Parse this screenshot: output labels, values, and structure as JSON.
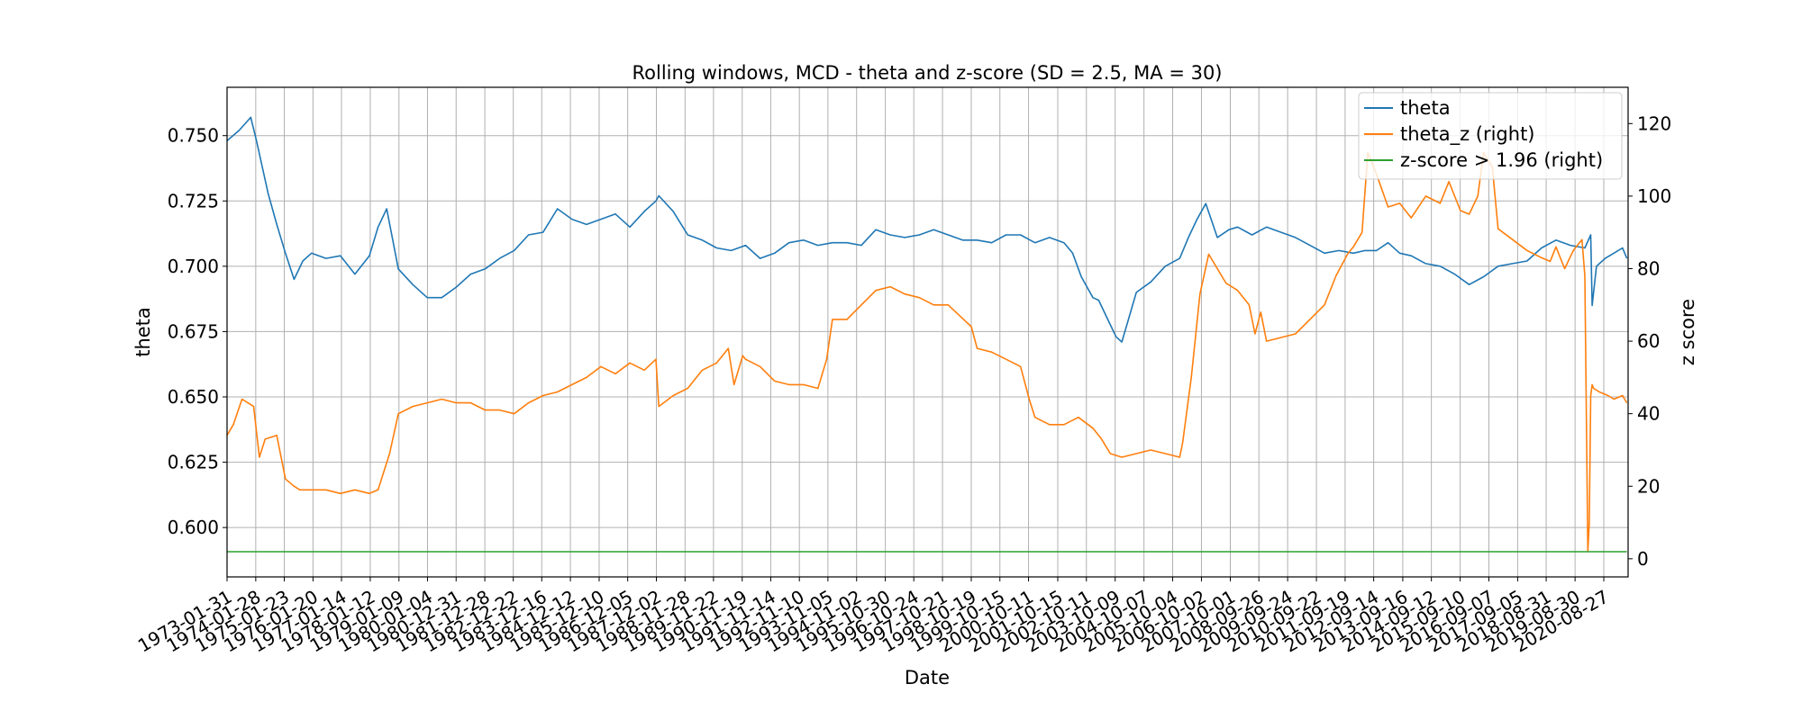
{
  "chart_data": {
    "type": "line",
    "title": "Rolling windows, MCD - theta and z-score (SD = 2.5, MA = 30)",
    "xlabel": "Date",
    "ylabel": "theta",
    "y2label": "z score",
    "grid": true,
    "legend_position": "top-right",
    "xlim": [
      "1973-01-31",
      "2021-06-30"
    ],
    "ylim": [
      0.5811,
      0.7685
    ],
    "y2lim": [
      -5,
      130
    ],
    "yticks": [
      "0.600",
      "0.625",
      "0.650",
      "0.675",
      "0.700",
      "0.725",
      "0.750"
    ],
    "y2ticks": [
      "0",
      "20",
      "40",
      "60",
      "80",
      "100",
      "120"
    ],
    "xticks": [
      "1973-01-31",
      "1974-01-28",
      "1975-01-23",
      "1976-01-20",
      "1977-01-14",
      "1978-01-12",
      "1979-01-09",
      "1980-01-04",
      "1980-12-31",
      "1981-12-28",
      "1982-12-22",
      "1983-12-16",
      "1984-12-12",
      "1985-12-10",
      "1986-12-05",
      "1987-12-02",
      "1988-11-28",
      "1989-11-22",
      "1990-11-19",
      "1991-11-14",
      "1992-11-10",
      "1993-11-05",
      "1994-11-02",
      "1995-10-30",
      "1996-10-24",
      "1997-10-21",
      "1998-10-19",
      "1999-10-15",
      "2000-10-11",
      "2001-10-15",
      "2002-10-11",
      "2003-10-09",
      "2004-10-07",
      "2005-10-04",
      "2006-10-02",
      "2007-10-01",
      "2008-09-26",
      "2009-09-24",
      "2010-09-22",
      "2011-09-19",
      "2012-09-14",
      "2013-09-16",
      "2014-09-12",
      "2015-09-10",
      "2016-09-07",
      "2017-09-05",
      "2018-08-31",
      "2019-08-30",
      "2020-08-27"
    ],
    "series": [
      {
        "name": "theta",
        "axis": "left",
        "color": "#1f77b4",
        "x": [
          1973.08,
          1973.5,
          1973.9,
          1974.1,
          1974.3,
          1974.5,
          1974.8,
          1975.1,
          1975.4,
          1975.7,
          1976.0,
          1976.5,
          1977.0,
          1977.5,
          1978.0,
          1978.3,
          1978.6,
          1979.0,
          1979.5,
          1980.0,
          1980.5,
          1981.0,
          1981.5,
          1982.0,
          1982.5,
          1983.0,
          1983.5,
          1984.0,
          1984.5,
          1985.0,
          1985.5,
          1986.0,
          1986.5,
          1987.0,
          1987.5,
          1987.9,
          1988.0,
          1988.5,
          1989.0,
          1989.5,
          1990.0,
          1990.5,
          1991.0,
          1991.5,
          1992.0,
          1992.5,
          1993.0,
          1993.5,
          1994.0,
          1994.5,
          1995.0,
          1995.5,
          1996.0,
          1996.5,
          1997.0,
          1997.5,
          1998.0,
          1998.5,
          1999.0,
          1999.5,
          2000.0,
          2000.5,
          2001.0,
          2001.5,
          2002.0,
          2002.3,
          2002.6,
          2003.0,
          2003.2,
          2003.5,
          2003.8,
          2004.0,
          2004.5,
          2005.0,
          2005.5,
          2006.0,
          2006.3,
          2006.6,
          2006.9,
          2007.3,
          2007.7,
          2008.0,
          2008.5,
          2009.0,
          2009.5,
          2010.0,
          2010.5,
          2011.0,
          2011.5,
          2012.0,
          2012.4,
          2012.8,
          2013.2,
          2013.6,
          2014.0,
          2014.5,
          2015.0,
          2015.5,
          2016.0,
          2016.5,
          2017.0,
          2017.5,
          2018.0,
          2018.5,
          2019.0,
          2019.5,
          2020.0,
          2020.2,
          2020.25,
          2020.4,
          2020.7,
          2021.0,
          2021.3,
          2021.45
        ],
        "values": [
          0.748,
          0.752,
          0.757,
          0.748,
          0.738,
          0.728,
          0.716,
          0.705,
          0.695,
          0.702,
          0.705,
          0.703,
          0.704,
          0.697,
          0.704,
          0.715,
          0.722,
          0.699,
          0.693,
          0.688,
          0.688,
          0.692,
          0.697,
          0.699,
          0.703,
          0.706,
          0.712,
          0.713,
          0.722,
          0.718,
          0.716,
          0.718,
          0.72,
          0.715,
          0.721,
          0.725,
          0.727,
          0.721,
          0.712,
          0.71,
          0.707,
          0.706,
          0.708,
          0.703,
          0.705,
          0.709,
          0.71,
          0.708,
          0.709,
          0.709,
          0.708,
          0.714,
          0.712,
          0.711,
          0.712,
          0.714,
          0.712,
          0.71,
          0.71,
          0.709,
          0.712,
          0.712,
          0.709,
          0.711,
          0.709,
          0.705,
          0.696,
          0.688,
          0.687,
          0.68,
          0.673,
          0.671,
          0.69,
          0.694,
          0.7,
          0.703,
          0.711,
          0.718,
          0.724,
          0.711,
          0.714,
          0.715,
          0.712,
          0.715,
          0.713,
          0.711,
          0.708,
          0.705,
          0.706,
          0.705,
          0.706,
          0.706,
          0.709,
          0.705,
          0.704,
          0.701,
          0.7,
          0.697,
          0.693,
          0.696,
          0.7,
          0.701,
          0.702,
          0.707,
          0.71,
          0.708,
          0.707,
          0.712,
          0.685,
          0.7,
          0.703,
          0.705,
          0.707,
          0.703
        ]
      },
      {
        "name": "theta_z (right)",
        "axis": "right",
        "color": "#ff7f0e",
        "x": [
          1973.08,
          1973.3,
          1973.6,
          1974.0,
          1974.2,
          1974.4,
          1974.8,
          1975.1,
          1975.4,
          1975.6,
          1976.0,
          1976.5,
          1977.0,
          1977.5,
          1978.0,
          1978.3,
          1978.5,
          1978.7,
          1979.0,
          1979.5,
          1980.0,
          1980.5,
          1981.0,
          1981.5,
          1982.0,
          1982.5,
          1983.0,
          1983.5,
          1984.0,
          1984.5,
          1985.0,
          1985.5,
          1986.0,
          1986.5,
          1987.0,
          1987.5,
          1987.9,
          1988.0,
          1988.5,
          1989.0,
          1989.5,
          1990.0,
          1990.4,
          1990.6,
          1990.9,
          1991.0,
          1991.5,
          1992.0,
          1992.5,
          1993.0,
          1993.5,
          1993.8,
          1994.0,
          1994.5,
          1995.0,
          1995.5,
          1996.0,
          1996.5,
          1997.0,
          1997.5,
          1998.0,
          1998.4,
          1998.8,
          1999.0,
          1999.5,
          2000.0,
          2000.5,
          2000.8,
          2001.0,
          2001.5,
          2002.0,
          2002.5,
          2003.0,
          2003.3,
          2003.6,
          2004.0,
          2004.5,
          2005.0,
          2005.5,
          2006.0,
          2006.1,
          2006.4,
          2006.7,
          2007.0,
          2007.3,
          2007.6,
          2008.0,
          2008.4,
          2008.6,
          2008.8,
          2009.0,
          2009.5,
          2010.0,
          2010.5,
          2011.0,
          2011.4,
          2011.8,
          2012.0,
          2012.3,
          2012.5,
          2012.8,
          2013.2,
          2013.6,
          2014.0,
          2014.5,
          2015.0,
          2015.3,
          2015.7,
          2016.0,
          2016.3,
          2016.5,
          2016.8,
          2017.0,
          2017.5,
          2018.0,
          2018.5,
          2018.8,
          2019.0,
          2019.3,
          2019.6,
          2019.9,
          2020.0,
          2020.1,
          2020.15,
          2020.2,
          2020.25,
          2020.3,
          2020.5,
          2020.8,
          2021.0,
          2021.3,
          2021.45
        ],
        "values": [
          34,
          37,
          44,
          42,
          28,
          33,
          34,
          22,
          20,
          19,
          19,
          19,
          18,
          19,
          18,
          19,
          24,
          29,
          40,
          42,
          43,
          44,
          43,
          43,
          41,
          41,
          40,
          43,
          45,
          46,
          48,
          50,
          53,
          51,
          54,
          52,
          55,
          42,
          45,
          47,
          52,
          54,
          58,
          48,
          56,
          55,
          53,
          49,
          48,
          48,
          47,
          55,
          66,
          66,
          70,
          74,
          75,
          73,
          72,
          70,
          70,
          67,
          64,
          58,
          57,
          55,
          53,
          44,
          39,
          37,
          37,
          39,
          36,
          33,
          29,
          28,
          29,
          30,
          29,
          28,
          32,
          50,
          73,
          84,
          80,
          76,
          74,
          70,
          62,
          68,
          60,
          61,
          62,
          66,
          70,
          78,
          84,
          86,
          90,
          112,
          106,
          97,
          98,
          94,
          100,
          98,
          104,
          96,
          95,
          100,
          112,
          108,
          91,
          88,
          85,
          83,
          82,
          86,
          80,
          85,
          88,
          78,
          2,
          10,
          45,
          48,
          47,
          46,
          45,
          44,
          45,
          43
        ]
      },
      {
        "name": "z-score > 1.96 (right)",
        "axis": "right",
        "color": "#2ca02c",
        "x": [
          1973.08,
          2021.45
        ],
        "values": [
          1.96,
          1.96
        ]
      }
    ]
  }
}
